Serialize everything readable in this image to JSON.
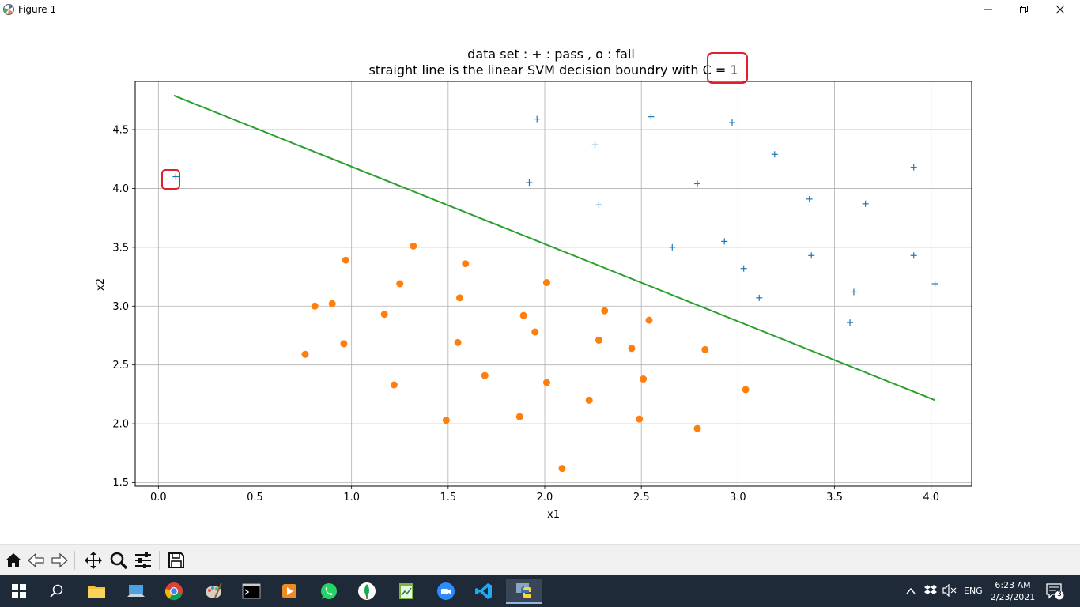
{
  "window": {
    "title": "Figure 1"
  },
  "chart_data": {
    "type": "scatter",
    "title_line1": "data set : + : pass , o : fail",
    "title_line2_prefix": "straight line is the linear SVM decision boundry with ",
    "title_line2_highlight": "C = 1",
    "xlabel": "x1",
    "ylabel": "x2",
    "xlim": [
      -0.12,
      4.21
    ],
    "ylim": [
      1.47,
      4.91
    ],
    "xticks": [
      0.0,
      0.5,
      1.0,
      1.5,
      2.0,
      2.5,
      3.0,
      3.5,
      4.0
    ],
    "xtick_labels": [
      "0.0",
      "0.5",
      "1.0",
      "1.5",
      "2.0",
      "2.5",
      "3.0",
      "3.5",
      "4.0"
    ],
    "yticks": [
      1.5,
      2.0,
      2.5,
      3.0,
      3.5,
      4.0,
      4.5
    ],
    "ytick_labels": [
      "1.5",
      "2.0",
      "2.5",
      "3.0",
      "3.5",
      "4.0",
      "4.5"
    ],
    "grid": true,
    "colors": {
      "pass": "#1f77b4",
      "fail": "#ff7f0e",
      "boundary": "#2ca02c",
      "highlight": "#e0202a"
    },
    "series": [
      {
        "marker": "plus",
        "points": [
          [
            0.09,
            4.1
          ],
          [
            1.92,
            4.05
          ],
          [
            1.96,
            4.59
          ],
          [
            2.26,
            4.37
          ],
          [
            2.28,
            3.86
          ],
          [
            2.55,
            4.61
          ],
          [
            2.66,
            3.5
          ],
          [
            2.79,
            4.04
          ],
          [
            2.93,
            3.55
          ],
          [
            2.97,
            4.56
          ],
          [
            3.03,
            3.32
          ],
          [
            3.11,
            3.07
          ],
          [
            3.19,
            4.29
          ],
          [
            3.37,
            3.91
          ],
          [
            3.38,
            3.43
          ],
          [
            3.58,
            2.86
          ],
          [
            3.6,
            3.12
          ],
          [
            3.66,
            3.87
          ],
          [
            3.91,
            3.43
          ],
          [
            3.91,
            4.18
          ],
          [
            4.02,
            3.19
          ]
        ]
      },
      {
        "marker": "circle",
        "points": [
          [
            0.76,
            2.59
          ],
          [
            0.81,
            3.0
          ],
          [
            0.9,
            3.02
          ],
          [
            0.96,
            2.68
          ],
          [
            0.97,
            3.39
          ],
          [
            1.17,
            2.93
          ],
          [
            1.22,
            2.33
          ],
          [
            1.25,
            3.19
          ],
          [
            1.32,
            3.51
          ],
          [
            1.49,
            2.03
          ],
          [
            1.55,
            2.69
          ],
          [
            1.56,
            3.07
          ],
          [
            1.59,
            3.36
          ],
          [
            1.69,
            2.41
          ],
          [
            1.87,
            2.06
          ],
          [
            1.89,
            2.92
          ],
          [
            1.95,
            2.78
          ],
          [
            2.01,
            2.35
          ],
          [
            2.01,
            3.2
          ],
          [
            2.09,
            1.62
          ],
          [
            2.23,
            2.2
          ],
          [
            2.28,
            2.71
          ],
          [
            2.31,
            2.96
          ],
          [
            2.45,
            2.64
          ],
          [
            2.49,
            2.04
          ],
          [
            2.51,
            2.38
          ],
          [
            2.54,
            2.88
          ],
          [
            2.79,
            1.96
          ],
          [
            2.83,
            2.63
          ],
          [
            3.04,
            2.29
          ]
        ]
      }
    ],
    "decision_boundary": {
      "x": [
        0.08,
        4.02
      ],
      "y": [
        4.79,
        2.2
      ]
    },
    "highlighted_point": [
      0.09,
      4.1
    ]
  },
  "toolbar": {
    "buttons": [
      "home",
      "back",
      "forward",
      "pan",
      "zoom",
      "configure",
      "save"
    ]
  },
  "taskbar": {
    "language": "ENG",
    "time": "6:23 AM",
    "date": "2/23/2021",
    "notification_count": "3"
  }
}
